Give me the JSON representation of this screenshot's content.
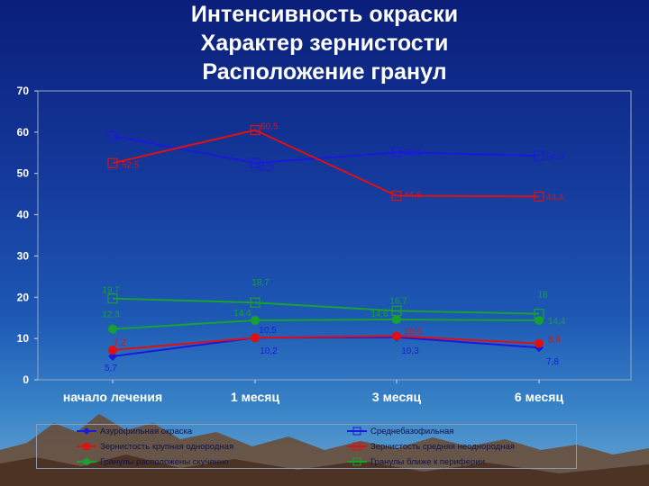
{
  "slide": {
    "title_lines": [
      "Интенсивность окраски",
      "Характер зернистости",
      "Расположение гранул"
    ]
  },
  "chart_data": {
    "type": "line",
    "title": "",
    "categories": [
      "начало лечения",
      "1 месяц",
      "3 месяц",
      "6 месяц"
    ],
    "ylim": [
      0,
      70
    ],
    "yticks": [
      0,
      10,
      20,
      30,
      40,
      50,
      60,
      70
    ],
    "grid": false,
    "legend_position": "bottom",
    "series": [
      {
        "name": "Азурофильная окраска",
        "values": [
          5.7,
          10.2,
          10.3,
          7.8
        ],
        "labels": [
          "5,7",
          "10,2",
          "10,3",
          "7,8"
        ],
        "color": "#1a1adc",
        "marker": "diamond"
      },
      {
        "name": "Среднебазофильная",
        "values": [
          59.1,
          52.5,
          55.1,
          54.3
        ],
        "labels": [
          "",
          "52,5",
          "55,1",
          "54,3"
        ],
        "color": "#1a1adc",
        "marker": "square-open"
      },
      {
        "name": "Зернистость крупная однородная",
        "values": [
          7.2,
          10.2,
          10.6,
          8.8
        ],
        "labels": [
          "7,2",
          "",
          "10,6",
          "8,8"
        ],
        "color": "#e01010",
        "marker": "circle"
      },
      {
        "name": "Зернистость средняя неоднородная",
        "values": [
          52.5,
          60.5,
          44.6,
          44.4
        ],
        "labels": [
          "52,5",
          "60,5",
          "44,6",
          "44,4"
        ],
        "color": "#e01010",
        "marker": "square-open"
      },
      {
        "name": "Гранулы расположены скученно",
        "values": [
          12.3,
          14.4,
          14.6,
          14.4
        ],
        "labels": [
          "12,3",
          "14,4",
          "14,6",
          "14,4"
        ],
        "color": "#18a030",
        "marker": "circle"
      },
      {
        "name": "Гранулы ближе к периферии",
        "values": [
          19.7,
          18.7,
          16.7,
          16
        ],
        "labels": [
          "19,7",
          "18,7",
          "16,7",
          "16"
        ],
        "color": "#18a030",
        "marker": "square-open"
      }
    ],
    "extra_labels": [
      "10,5"
    ]
  }
}
